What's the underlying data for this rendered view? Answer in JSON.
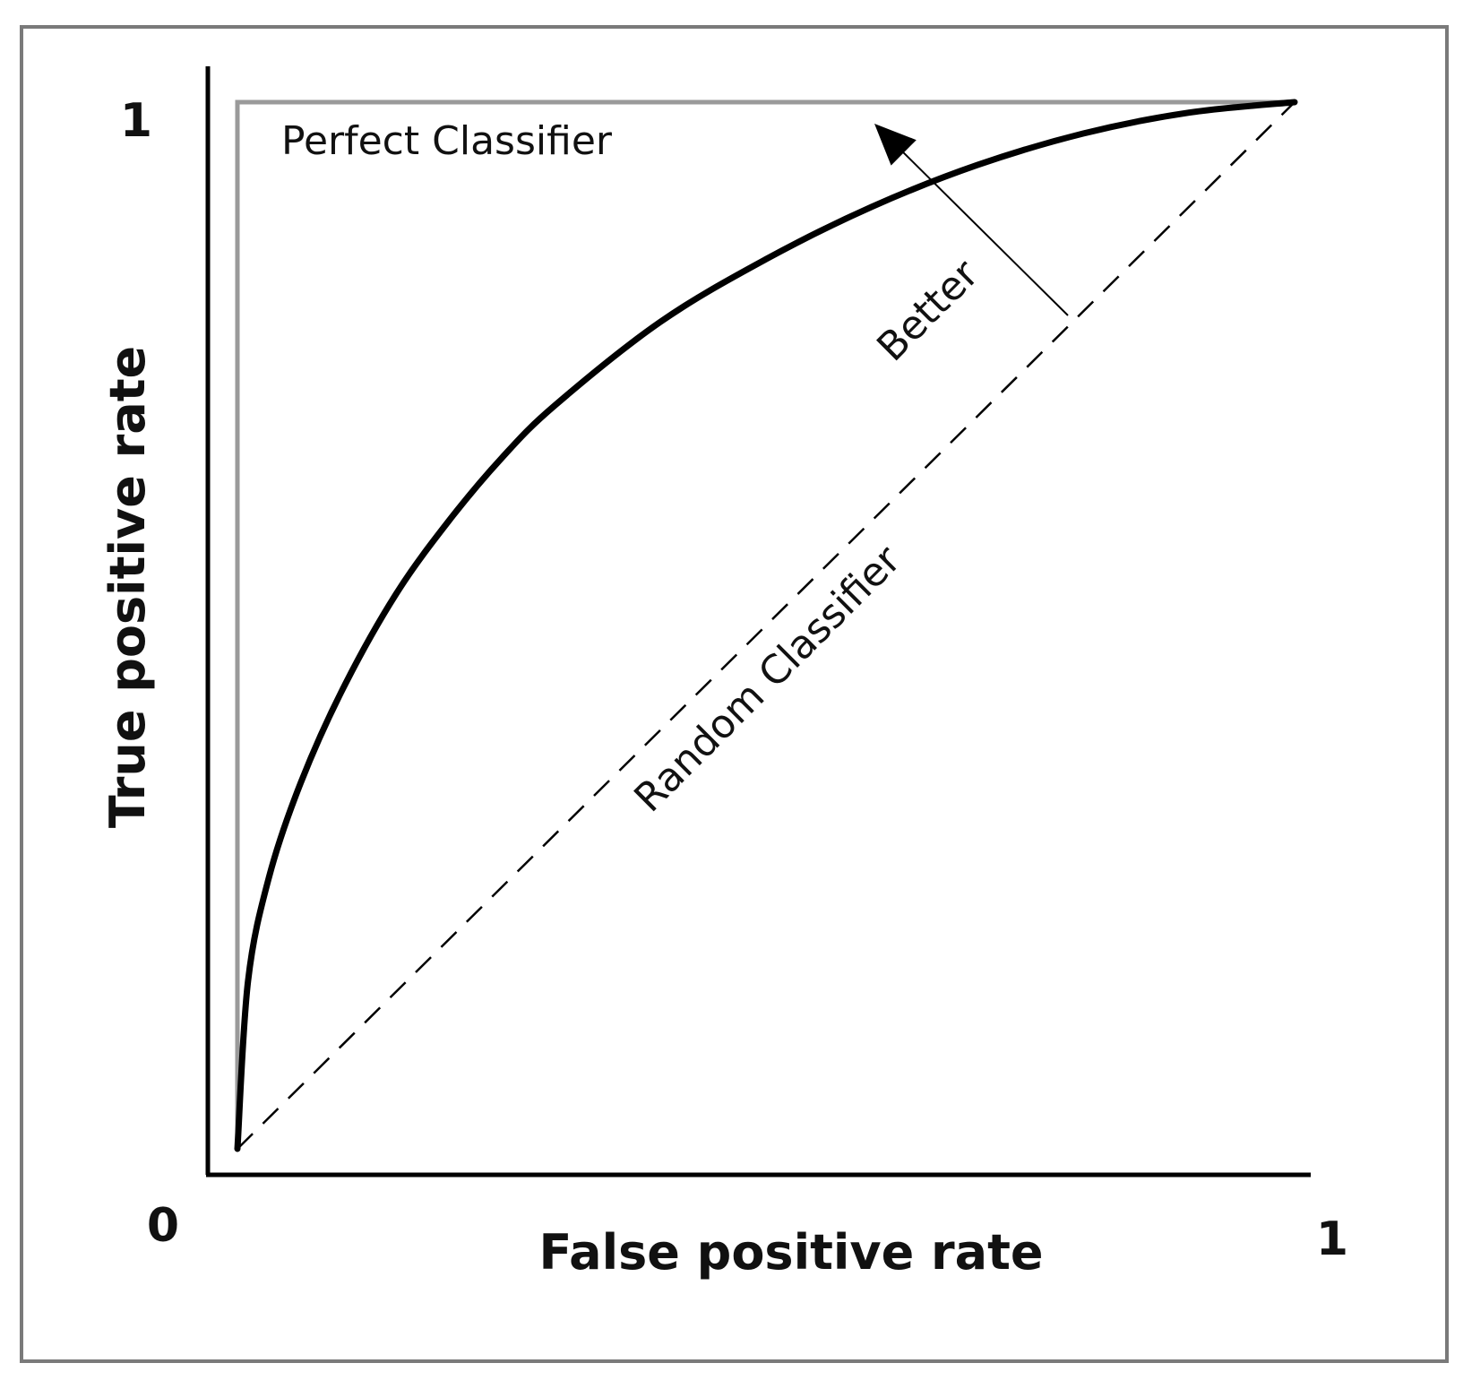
{
  "chart_data": {
    "type": "line",
    "xlabel": "False positive rate",
    "ylabel": "True positive rate",
    "xlim": [
      0,
      1
    ],
    "ylim": [
      0,
      1
    ],
    "x_ticks": [
      "0",
      "1"
    ],
    "y_ticks": [
      "1"
    ],
    "grid": false,
    "series": [
      {
        "name": "Perfect Classifier",
        "style": "solid-gray",
        "color": "#9a9a9a",
        "x": [
          0,
          0,
          1
        ],
        "y": [
          0,
          1,
          1
        ]
      },
      {
        "name": "",
        "style": "solid-thick",
        "color": "#000000",
        "x": [
          0,
          0.01,
          0.03,
          0.06,
          0.1,
          0.15,
          0.2,
          0.25,
          0.3,
          0.4,
          0.5,
          0.6,
          0.7,
          0.8,
          0.9,
          1
        ],
        "y": [
          0,
          0.16,
          0.26,
          0.35,
          0.44,
          0.53,
          0.6,
          0.66,
          0.71,
          0.79,
          0.85,
          0.9,
          0.94,
          0.97,
          0.99,
          1
        ]
      },
      {
        "name": "Random Classifier",
        "style": "dashed",
        "color": "#000000",
        "x": [
          0,
          1
        ],
        "y": [
          0,
          1
        ]
      }
    ],
    "annotations": [
      {
        "text": "Perfect Classifier"
      },
      {
        "text": "Random Classifier"
      },
      {
        "text": "Better"
      }
    ]
  }
}
